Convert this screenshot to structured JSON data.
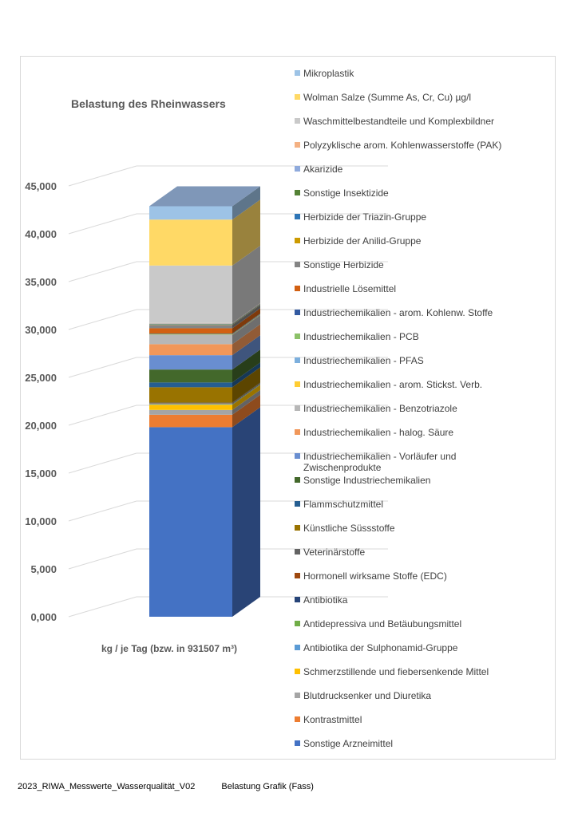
{
  "chart_data": {
    "type": "bar",
    "title": "Belastung des Rheinwassers",
    "xlabel": "kg / je Tag (bzw. in 931507 m³)",
    "ylabel": "",
    "ylim": [
      0,
      45000
    ],
    "yticks": [
      "0,000",
      "5,000",
      "10,000",
      "15,000",
      "20,000",
      "25,000",
      "30,000",
      "35,000",
      "40,000",
      "45,000"
    ],
    "legend_position": "right",
    "stacked": true,
    "three_d": true,
    "series": [
      {
        "name": "Sonstige Arzneimittel",
        "value": 19800,
        "color": "#4472c4"
      },
      {
        "name": "Kontrastmittel",
        "value": 1300,
        "color": "#ed7d31"
      },
      {
        "name": "Blutdrucksenker und Diuretika",
        "value": 500,
        "color": "#a5a5a5"
      },
      {
        "name": "Schmerzstillende und fiebersenkende Mittel",
        "value": 550,
        "color": "#ffc000"
      },
      {
        "name": "Antibiotika der Sulphonamid-Gruppe",
        "value": 40,
        "color": "#5b9bd5"
      },
      {
        "name": "Antidepressiva und Betäubungsmittel",
        "value": 40,
        "color": "#70ad47"
      },
      {
        "name": "Antibiotika",
        "value": 40,
        "color": "#264478"
      },
      {
        "name": "Hormonell wirksame Stoffe (EDC)",
        "value": 40,
        "color": "#9e480e"
      },
      {
        "name": "Veterinärstoffe",
        "value": 60,
        "color": "#636363"
      },
      {
        "name": "Künstliche Süssstoffe",
        "value": 1600,
        "color": "#997300"
      },
      {
        "name": "Flammschutzmittel",
        "value": 500,
        "color": "#255e91"
      },
      {
        "name": "Sonstige Industriechemikalien",
        "value": 1350,
        "color": "#43682b"
      },
      {
        "name": "Industriechemikalien - Vorläufer und Zwischenprodukte",
        "value": 1500,
        "color": "#698ed0"
      },
      {
        "name": "Industriechemikalien - halog. Säure",
        "value": 1150,
        "color": "#f1975a"
      },
      {
        "name": "Industriechemikalien - Benzotriazole",
        "value": 950,
        "color": "#b7b7b7"
      },
      {
        "name": "Industriechemikalien - arom. Stickst. Verb.",
        "value": 40,
        "color": "#ffcd33"
      },
      {
        "name": "Industriechemikalien - PFAS",
        "value": 40,
        "color": "#7cafdd"
      },
      {
        "name": "Industriechemikalien - PCB",
        "value": 40,
        "color": "#8cc168"
      },
      {
        "name": "Industriechemikalien - arom. Kohlenw. Stoffe",
        "value": 40,
        "color": "#335aa1"
      },
      {
        "name": "Industrielle Lösemittel",
        "value": 550,
        "color": "#d26012"
      },
      {
        "name": "Sonstige Herbizide",
        "value": 350,
        "color": "#848484"
      },
      {
        "name": "Herbizide der Anilid-Gruppe",
        "value": 40,
        "color": "#cc9a00"
      },
      {
        "name": "Herbizide der Triazin-Gruppe",
        "value": 40,
        "color": "#2e75b6"
      },
      {
        "name": "Sonstige Insektizide",
        "value": 40,
        "color": "#548235"
      },
      {
        "name": "Akarizide",
        "value": 40,
        "color": "#8faadc"
      },
      {
        "name": "Polyzyklische arom. Kohlenwasserstoffe (PAK)",
        "value": 40,
        "color": "#f4b183"
      },
      {
        "name": "Waschmittelbestandteile und Komplexbildner",
        "value": 6000,
        "color": "#c9c9c9"
      },
      {
        "name": "Wolman Salze (Summe As, Cr, Cu) µg/l",
        "value": 4800,
        "color": "#ffd966"
      },
      {
        "name": "Mikroplastik",
        "value": 1400,
        "color": "#9dc3e6"
      }
    ]
  },
  "footer": {
    "file_name": "2023_RIWA_Messwerte_Wasserqualität_V02",
    "sheet_name": "Belastung Grafik (Fass)"
  }
}
